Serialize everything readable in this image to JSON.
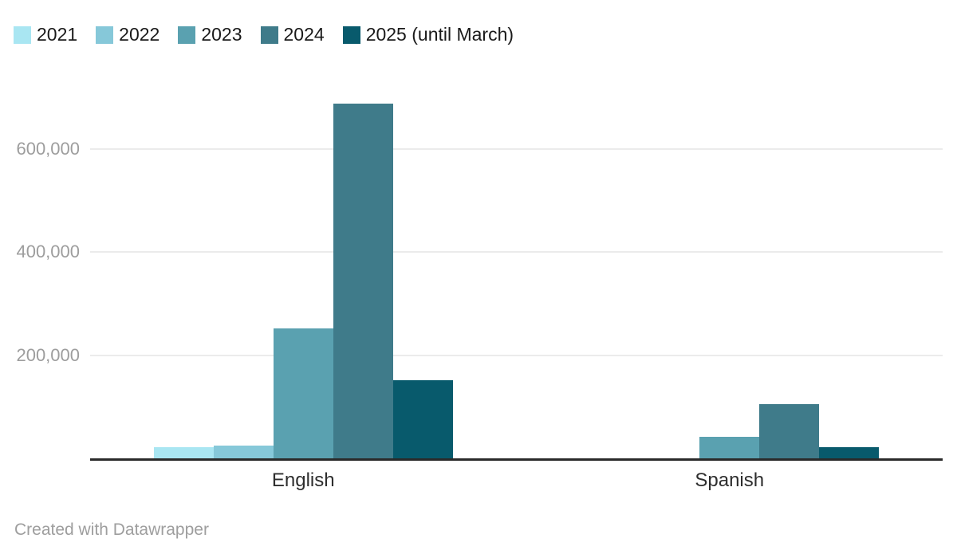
{
  "chart_data": {
    "type": "bar",
    "categories": [
      "English",
      "Spanish"
    ],
    "series": [
      {
        "name": "2021",
        "color": "#a9e6f2",
        "values": [
          21000,
          0
        ]
      },
      {
        "name": "2022",
        "color": "#86c8d9",
        "values": [
          25000,
          0
        ]
      },
      {
        "name": "2023",
        "color": "#5aa1b0",
        "values": [
          252000,
          42000
        ]
      },
      {
        "name": "2024",
        "color": "#3f7b8a",
        "values": [
          688000,
          105000
        ]
      },
      {
        "name": "2025 (until March)",
        "color": "#085a6c",
        "values": [
          151000,
          22000
        ]
      }
    ],
    "y_ticks": [
      200000,
      400000,
      600000
    ],
    "y_tick_labels": [
      "200,000",
      "400,000",
      "600,000"
    ],
    "ylim": [
      0,
      700000
    ],
    "grid": "horizontal",
    "legend_position": "top-left",
    "title": "",
    "xlabel": "",
    "ylabel": ""
  },
  "footer": {
    "credit": "Created with Datawrapper"
  },
  "colors": {
    "background": "#ffffff",
    "gridline": "#ebebeb",
    "axis_line": "#2a2a2a",
    "tick_label": "#9d9d9d",
    "category_label": "#2e2e2e",
    "legend_label": "#1a1a1a",
    "credit_text": "#9e9e9e"
  }
}
